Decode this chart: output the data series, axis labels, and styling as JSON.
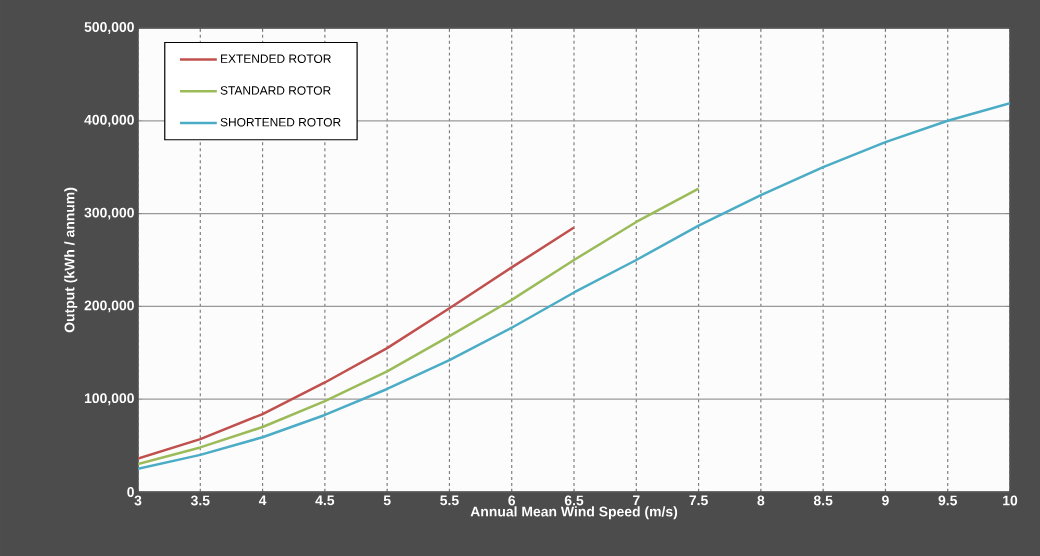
{
  "chart_data": {
    "type": "line",
    "xlabel": "Annual Mean Wind Speed (m/s)",
    "ylabel": "Output (kWh / annum)",
    "x": [
      3,
      3.5,
      4,
      4.5,
      5,
      5.5,
      6,
      6.5,
      7,
      7.5,
      8,
      8.5,
      9,
      9.5,
      10
    ],
    "series": [
      {
        "name": "EXTENDED ROTOR",
        "color": "#c0504d",
        "values": [
          36000,
          57000,
          84000,
          118000,
          155000,
          198000,
          242000,
          285000,
          null,
          null,
          null,
          null,
          null,
          null,
          null
        ]
      },
      {
        "name": "STANDARD ROTOR",
        "color": "#9bbb59",
        "values": [
          30000,
          48000,
          70000,
          98000,
          130000,
          168000,
          207000,
          250000,
          291000,
          327000,
          null,
          null,
          null,
          null,
          null
        ]
      },
      {
        "name": "SHORTENED ROTOR",
        "color": "#4bacc6",
        "values": [
          25000,
          40000,
          59000,
          83000,
          111000,
          142000,
          177000,
          215000,
          250000,
          287000,
          320000,
          350000,
          377000,
          400000,
          419000
        ]
      }
    ],
    "xlim": [
      3,
      10
    ],
    "ylim": [
      0,
      500000
    ],
    "xticks": [
      3,
      3.5,
      4,
      4.5,
      5,
      5.5,
      6,
      6.5,
      7,
      7.5,
      8,
      8.5,
      9,
      9.5,
      10
    ],
    "yticks": [
      {
        "value": 0,
        "label": "0"
      },
      {
        "value": 100000,
        "label": "100,000"
      },
      {
        "value": 200000,
        "label": "200,000"
      },
      {
        "value": 300000,
        "label": "300,000"
      },
      {
        "value": 400000,
        "label": "400,000"
      },
      {
        "value": 500000,
        "label": "500,000"
      }
    ],
    "grid": true,
    "legend": "top left",
    "marker": "none",
    "line_style": "solid"
  }
}
